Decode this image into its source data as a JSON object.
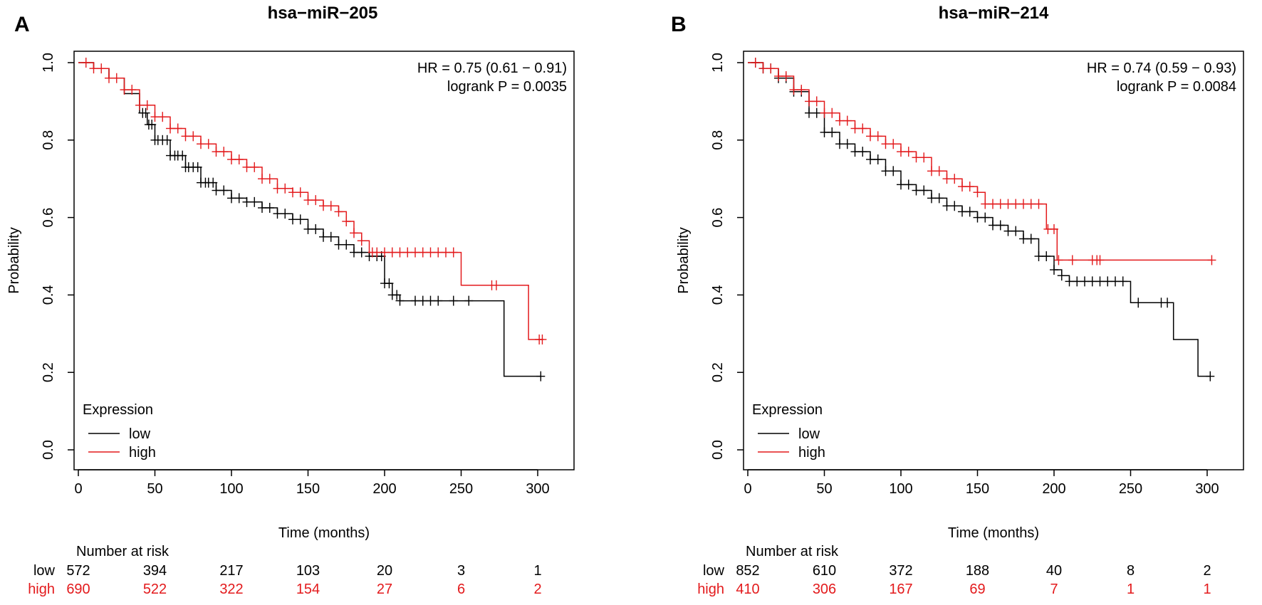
{
  "colors": {
    "low": "#000000",
    "high": "#e31a1c"
  },
  "panels": [
    {
      "letter": "A",
      "title": "hsa−miR−205",
      "stats": [
        "HR = 0.75 (0.61 − 0.91)",
        "logrank P = 0.0035"
      ],
      "xlabel": "Time (months)",
      "ylabel": "Probability",
      "xticks": [
        "0",
        "50",
        "100",
        "150",
        "200",
        "250",
        "300"
      ],
      "yticks": [
        "0.0",
        "0.2",
        "0.4",
        "0.6",
        "0.8",
        "1.0"
      ],
      "legend_title": "Expression",
      "legend_labels": [
        "low",
        "high"
      ],
      "risk_title": "Number at risk",
      "risk_rows": [
        {
          "label": "low",
          "values": [
            "572",
            "394",
            "217",
            "103",
            "20",
            "3",
            "1"
          ]
        },
        {
          "label": "high",
          "values": [
            "690",
            "522",
            "322",
            "154",
            "27",
            "6",
            "2"
          ]
        }
      ]
    },
    {
      "letter": "B",
      "title": "hsa−miR−214",
      "stats": [
        "HR = 0.74 (0.59 − 0.93)",
        "logrank P = 0.0084"
      ],
      "xlabel": "Time (months)",
      "ylabel": "Probability",
      "xticks": [
        "0",
        "50",
        "100",
        "150",
        "200",
        "250",
        "300"
      ],
      "yticks": [
        "0.0",
        "0.2",
        "0.4",
        "0.6",
        "0.8",
        "1.0"
      ],
      "legend_title": "Expression",
      "legend_labels": [
        "low",
        "high"
      ],
      "risk_title": "Number at risk",
      "risk_rows": [
        {
          "label": "low",
          "values": [
            "852",
            "610",
            "372",
            "188",
            "40",
            "8",
            "2"
          ]
        },
        {
          "label": "high",
          "values": [
            "410",
            "306",
            "167",
            "69",
            "7",
            "1",
            "1"
          ]
        }
      ]
    }
  ],
  "chart_data": [
    {
      "type": "line",
      "title": "hsa−miR−205",
      "xlabel": "Time (months)",
      "ylabel": "Probability",
      "xlim": [
        0,
        310
      ],
      "ylim": [
        0,
        1
      ],
      "series": [
        {
          "name": "low",
          "points": [
            [
              0,
              1.0
            ],
            [
              10,
              0.985
            ],
            [
              20,
              0.96
            ],
            [
              30,
              0.92
            ],
            [
              40,
              0.87
            ],
            [
              45,
              0.84
            ],
            [
              50,
              0.8
            ],
            [
              60,
              0.76
            ],
            [
              70,
              0.73
            ],
            [
              80,
              0.69
            ],
            [
              90,
              0.67
            ],
            [
              100,
              0.65
            ],
            [
              110,
              0.64
            ],
            [
              120,
              0.625
            ],
            [
              130,
              0.61
            ],
            [
              140,
              0.595
            ],
            [
              150,
              0.57
            ],
            [
              160,
              0.55
            ],
            [
              170,
              0.53
            ],
            [
              180,
              0.51
            ],
            [
              190,
              0.5
            ],
            [
              200,
              0.43
            ],
            [
              205,
              0.4
            ],
            [
              210,
              0.385
            ],
            [
              278,
              0.385
            ],
            [
              278,
              0.19
            ],
            [
              302,
              0.19
            ]
          ],
          "censor_times": [
            42,
            44,
            46,
            48,
            50,
            52,
            55,
            58,
            60,
            63,
            65,
            68,
            70,
            72,
            75,
            78,
            80,
            83,
            85,
            88,
            90,
            95,
            100,
            105,
            110,
            115,
            120,
            125,
            130,
            135,
            140,
            145,
            150,
            155,
            160,
            165,
            170,
            175,
            180,
            185,
            190,
            195,
            198,
            200,
            203,
            205,
            208,
            210,
            220,
            225,
            230,
            235,
            245,
            255,
            302
          ]
        },
        {
          "name": "high",
          "points": [
            [
              0,
              1.0
            ],
            [
              10,
              0.985
            ],
            [
              20,
              0.96
            ],
            [
              30,
              0.93
            ],
            [
              40,
              0.89
            ],
            [
              50,
              0.86
            ],
            [
              60,
              0.83
            ],
            [
              70,
              0.81
            ],
            [
              80,
              0.79
            ],
            [
              90,
              0.77
            ],
            [
              100,
              0.75
            ],
            [
              110,
              0.73
            ],
            [
              120,
              0.7
            ],
            [
              130,
              0.675
            ],
            [
              140,
              0.665
            ],
            [
              150,
              0.645
            ],
            [
              160,
              0.63
            ],
            [
              170,
              0.615
            ],
            [
              175,
              0.59
            ],
            [
              180,
              0.56
            ],
            [
              185,
              0.54
            ],
            [
              190,
              0.51
            ],
            [
              250,
              0.51
            ],
            [
              250,
              0.425
            ],
            [
              294,
              0.425
            ],
            [
              294,
              0.285
            ],
            [
              303,
              0.285
            ]
          ],
          "censor_times": [
            5,
            10,
            15,
            20,
            25,
            30,
            35,
            40,
            45,
            50,
            55,
            60,
            65,
            70,
            75,
            80,
            85,
            90,
            95,
            100,
            105,
            110,
            115,
            120,
            125,
            130,
            135,
            140,
            145,
            150,
            155,
            160,
            165,
            170,
            175,
            180,
            185,
            192,
            195,
            200,
            205,
            210,
            215,
            220,
            225,
            230,
            235,
            240,
            245,
            270,
            273,
            301,
            303
          ]
        }
      ],
      "annotations": [
        "HR = 0.75 (0.61 − 0.91)",
        "logrank P = 0.0035"
      ],
      "legend": {
        "title": "Expression",
        "entries": [
          "low",
          "high"
        ],
        "position": "bottom-left"
      }
    },
    {
      "type": "line",
      "title": "hsa−miR−214",
      "xlabel": "Time (months)",
      "ylabel": "Probability",
      "xlim": [
        0,
        310
      ],
      "ylim": [
        0,
        1
      ],
      "series": [
        {
          "name": "low",
          "points": [
            [
              0,
              1.0
            ],
            [
              10,
              0.985
            ],
            [
              20,
              0.96
            ],
            [
              30,
              0.925
            ],
            [
              40,
              0.87
            ],
            [
              50,
              0.82
            ],
            [
              60,
              0.79
            ],
            [
              70,
              0.77
            ],
            [
              80,
              0.75
            ],
            [
              90,
              0.72
            ],
            [
              100,
              0.685
            ],
            [
              110,
              0.67
            ],
            [
              120,
              0.65
            ],
            [
              130,
              0.63
            ],
            [
              140,
              0.615
            ],
            [
              150,
              0.6
            ],
            [
              160,
              0.58
            ],
            [
              170,
              0.565
            ],
            [
              180,
              0.545
            ],
            [
              190,
              0.5
            ],
            [
              200,
              0.465
            ],
            [
              205,
              0.45
            ],
            [
              210,
              0.435
            ],
            [
              250,
              0.435
            ],
            [
              250,
              0.38
            ],
            [
              278,
              0.38
            ],
            [
              278,
              0.285
            ],
            [
              294,
              0.285
            ],
            [
              294,
              0.19
            ],
            [
              302,
              0.19
            ]
          ],
          "censor_times": [
            5,
            10,
            15,
            20,
            25,
            30,
            35,
            40,
            45,
            50,
            55,
            60,
            65,
            70,
            75,
            80,
            85,
            90,
            95,
            100,
            105,
            110,
            115,
            120,
            125,
            130,
            135,
            140,
            145,
            150,
            155,
            160,
            165,
            170,
            175,
            180,
            185,
            190,
            195,
            200,
            205,
            210,
            215,
            220,
            225,
            230,
            235,
            240,
            245,
            255,
            270,
            274,
            302
          ]
        },
        {
          "name": "high",
          "points": [
            [
              0,
              1.0
            ],
            [
              10,
              0.985
            ],
            [
              20,
              0.965
            ],
            [
              30,
              0.93
            ],
            [
              40,
              0.9
            ],
            [
              50,
              0.87
            ],
            [
              60,
              0.85
            ],
            [
              70,
              0.83
            ],
            [
              80,
              0.81
            ],
            [
              90,
              0.79
            ],
            [
              100,
              0.77
            ],
            [
              110,
              0.755
            ],
            [
              120,
              0.72
            ],
            [
              130,
              0.7
            ],
            [
              140,
              0.68
            ],
            [
              150,
              0.665
            ],
            [
              155,
              0.635
            ],
            [
              195,
              0.635
            ],
            [
              195,
              0.57
            ],
            [
              202,
              0.57
            ],
            [
              202,
              0.49
            ],
            [
              303,
              0.49
            ]
          ],
          "censor_times": [
            5,
            10,
            15,
            20,
            25,
            30,
            35,
            40,
            45,
            50,
            55,
            60,
            65,
            70,
            75,
            80,
            85,
            90,
            95,
            100,
            105,
            110,
            115,
            120,
            125,
            130,
            135,
            140,
            145,
            150,
            155,
            160,
            165,
            170,
            175,
            180,
            185,
            190,
            196,
            200,
            203,
            212,
            225,
            228,
            230,
            303
          ]
        }
      ],
      "annotations": [
        "HR = 0.74 (0.59 − 0.93)",
        "logrank P = 0.0084"
      ],
      "legend": {
        "title": "Expression",
        "entries": [
          "low",
          "high"
        ],
        "position": "bottom-left"
      }
    }
  ]
}
